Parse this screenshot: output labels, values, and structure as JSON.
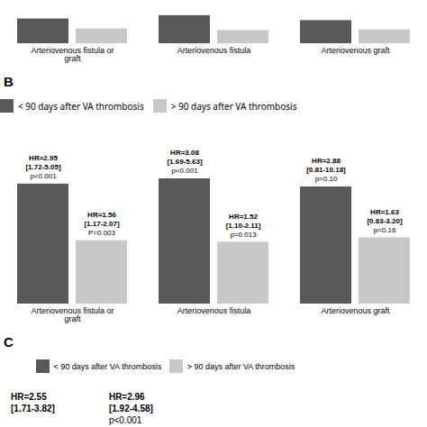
{
  "chart_data": [
    {
      "type": "bar",
      "categories": [
        "Arteriovenous fistula or graft",
        "Arteriovenous fistula",
        "Arteriovenous graft"
      ],
      "series": [
        {
          "color": "#595959",
          "values": [
            0.75,
            0.85,
            0.7
          ]
        },
        {
          "color": "#c8c8c8",
          "values": [
            0.45,
            0.4,
            0.42
          ]
        }
      ],
      "ylim": [
        0,
        1.2
      ],
      "tick_labels": "x"
    },
    {
      "type": "bar",
      "title": "B",
      "categories": [
        "Arteriovenous fistula or graft",
        "Arteriovenous fistula",
        "Arteriovenous graft"
      ],
      "series": [
        {
          "name": "< 90 days after VA thrombosis",
          "color": "#595959",
          "values": [
            2.95,
            3.08,
            2.88
          ],
          "value_labels": [
            "HR=2.95",
            "HR=3.08",
            "HR=2.88"
          ],
          "annotations": [
            [
              "[1.72-5.05]",
              "p<0.001"
            ],
            [
              "[1.69-5.63]",
              "p<0.001"
            ],
            [
              "[0.81-10.18]",
              "p=0.10"
            ]
          ]
        },
        {
          "name": "> 90 days after VA thrombosis",
          "color": "#c8c8c8",
          "values": [
            1.56,
            1.52,
            1.63
          ],
          "value_labels": [
            "HR=1.56",
            "HR=1.52",
            "HR=1.63"
          ],
          "annotations": [
            [
              "[1.17-2.07]",
              "P=0.003"
            ],
            [
              "[1.10-2.11]",
              "p=0.013"
            ],
            [
              "[0.83-3.20]",
              "p=0.16"
            ]
          ]
        }
      ],
      "ylim": [
        0,
        3.5
      ],
      "tick_labels": "x",
      "legend": "top",
      "data_labels": true
    },
    {
      "type": "text",
      "title": "C",
      "series": [
        {
          "name": "< 90 days after VA thrombosis",
          "color": "#595959"
        },
        {
          "name": "> 90 days after VA thrombosis",
          "color": "#c8c8c8"
        }
      ],
      "legend": "top",
      "annotations": [
        [
          "HR=2.55",
          "[1.71-3.82]"
        ],
        [
          "HR=2.96",
          "[1.92-4.58]",
          "p<0.001"
        ]
      ]
    }
  ]
}
